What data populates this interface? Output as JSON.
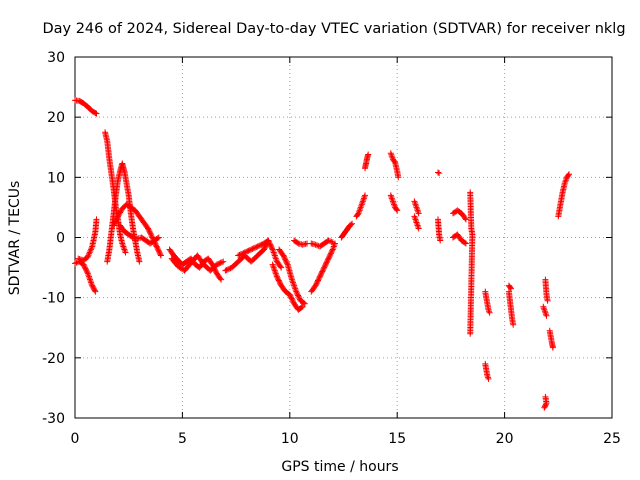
{
  "chart_data": {
    "type": "scatter",
    "title": "Day 246 of 2024, Sidereal Day-to-day VTEC variation (SDTVAR) for receiver nklg",
    "xlabel": "GPS time / hours",
    "ylabel": "SDTVAR / TECUs",
    "xlim": [
      0,
      25
    ],
    "ylim": [
      -30,
      30
    ],
    "xticks": [
      0,
      5,
      10,
      15,
      20,
      25
    ],
    "yticks": [
      -30,
      -20,
      -10,
      0,
      10,
      20,
      30
    ],
    "grid": true,
    "marker": "+",
    "color": "#ff0000",
    "series": [
      {
        "name": "SDTVAR",
        "segments": [
          [
            [
              0.0,
              22.8
            ],
            [
              0.2,
              22.7
            ],
            [
              0.4,
              22.3
            ],
            [
              0.6,
              21.7
            ],
            [
              0.8,
              21.0
            ],
            [
              1.0,
              20.6
            ]
          ],
          [
            [
              0.0,
              -4.3
            ],
            [
              0.2,
              -4.0
            ],
            [
              0.4,
              -4.5
            ],
            [
              0.6,
              -6.0
            ],
            [
              0.8,
              -8.0
            ],
            [
              0.95,
              -9.0
            ]
          ],
          [
            [
              0.15,
              -3.5
            ],
            [
              0.4,
              -3.8
            ],
            [
              0.6,
              -3.2
            ],
            [
              0.8,
              -1.5
            ],
            [
              0.95,
              1.0
            ],
            [
              1.0,
              3.0
            ]
          ],
          [
            [
              1.4,
              17.5
            ],
            [
              1.5,
              16.0
            ],
            [
              1.6,
              13.0
            ],
            [
              1.7,
              10.5
            ],
            [
              1.8,
              8.0
            ],
            [
              1.9,
              5.0
            ],
            [
              2.0,
              3.0
            ],
            [
              2.1,
              0.5
            ],
            [
              2.2,
              -1.0
            ],
            [
              2.35,
              -2.5
            ]
          ],
          [
            [
              1.5,
              -4.0
            ],
            [
              1.6,
              -2.0
            ],
            [
              1.7,
              1.0
            ],
            [
              1.8,
              4.0
            ],
            [
              1.9,
              7.0
            ],
            [
              2.0,
              9.5
            ],
            [
              2.1,
              11.0
            ],
            [
              2.2,
              12.3
            ],
            [
              2.3,
              11.0
            ],
            [
              2.4,
              9.0
            ],
            [
              2.5,
              7.0
            ],
            [
              2.6,
              4.0
            ],
            [
              2.7,
              1.5
            ],
            [
              2.8,
              -0.5
            ],
            [
              2.9,
              -2.5
            ],
            [
              3.0,
              -4.0
            ]
          ],
          [
            [
              1.8,
              2.0
            ],
            [
              2.0,
              3.5
            ],
            [
              2.2,
              4.8
            ],
            [
              2.4,
              5.5
            ],
            [
              2.6,
              5.0
            ],
            [
              2.8,
              4.5
            ],
            [
              3.0,
              3.5
            ],
            [
              3.2,
              2.5
            ],
            [
              3.4,
              1.5
            ],
            [
              3.6,
              0.0
            ],
            [
              3.8,
              -1.5
            ],
            [
              4.0,
              -3.0
            ]
          ],
          [
            [
              2.1,
              2.0
            ],
            [
              2.3,
              1.0
            ],
            [
              2.5,
              0.5
            ],
            [
              2.7,
              0.0
            ],
            [
              2.9,
              -0.2
            ],
            [
              3.1,
              0.0
            ],
            [
              3.3,
              -0.5
            ],
            [
              3.5,
              -1.0
            ],
            [
              3.7,
              -0.5
            ],
            [
              3.9,
              0.0
            ]
          ],
          [
            [
              4.4,
              -2.0
            ],
            [
              4.6,
              -3.0
            ],
            [
              4.8,
              -3.8
            ],
            [
              5.0,
              -4.5
            ],
            [
              5.2,
              -4.0
            ],
            [
              5.4,
              -3.5
            ],
            [
              5.6,
              -4.5
            ],
            [
              5.8,
              -5.0
            ],
            [
              6.0,
              -4.0
            ],
            [
              6.2,
              -3.5
            ],
            [
              6.4,
              -4.5
            ],
            [
              6.6,
              -6.0
            ],
            [
              6.8,
              -7.0
            ]
          ],
          [
            [
              4.5,
              -3.5
            ],
            [
              4.8,
              -4.8
            ],
            [
              5.1,
              -5.5
            ],
            [
              5.4,
              -4.2
            ],
            [
              5.7,
              -3.0
            ],
            [
              6.0,
              -4.5
            ],
            [
              6.3,
              -5.5
            ],
            [
              6.6,
              -4.5
            ],
            [
              6.9,
              -4.0
            ]
          ],
          [
            [
              7.0,
              -5.5
            ],
            [
              7.3,
              -5.0
            ],
            [
              7.6,
              -4.0
            ],
            [
              7.9,
              -3.0
            ],
            [
              8.2,
              -4.0
            ],
            [
              8.5,
              -3.0
            ],
            [
              8.8,
              -2.0
            ],
            [
              9.0,
              -0.5
            ],
            [
              9.2,
              -2.0
            ],
            [
              9.4,
              -4.0
            ],
            [
              9.6,
              -5.0
            ]
          ],
          [
            [
              7.6,
              -3.0
            ],
            [
              7.9,
              -2.5
            ],
            [
              8.2,
              -2.0
            ],
            [
              8.5,
              -1.5
            ],
            [
              8.8,
              -1.0
            ],
            [
              9.0,
              -0.5
            ]
          ],
          [
            [
              9.2,
              -4.5
            ],
            [
              9.4,
              -6.5
            ],
            [
              9.6,
              -8.0
            ],
            [
              9.8,
              -9.0
            ],
            [
              10.0,
              -9.5
            ],
            [
              10.2,
              -11.0
            ],
            [
              10.4,
              -12.0
            ],
            [
              10.6,
              -11.5
            ]
          ],
          [
            [
              9.5,
              -2.0
            ],
            [
              9.7,
              -3.0
            ],
            [
              9.9,
              -4.5
            ],
            [
              10.1,
              -7.0
            ],
            [
              10.3,
              -9.0
            ],
            [
              10.5,
              -10.5
            ],
            [
              10.7,
              -11.0
            ]
          ],
          [
            [
              10.2,
              -0.5
            ],
            [
              10.4,
              -1.0
            ],
            [
              10.6,
              -1.2
            ],
            [
              10.8,
              -1.0
            ]
          ],
          [
            [
              11.0,
              -9.0
            ],
            [
              11.2,
              -8.0
            ],
            [
              11.4,
              -6.5
            ],
            [
              11.6,
              -5.0
            ],
            [
              11.8,
              -3.5
            ],
            [
              12.0,
              -2.0
            ],
            [
              12.1,
              -1.0
            ]
          ],
          [
            [
              11.0,
              -1.0
            ],
            [
              11.2,
              -1.2
            ],
            [
              11.4,
              -1.5
            ],
            [
              11.6,
              -1.0
            ],
            [
              11.8,
              -0.5
            ],
            [
              12.0,
              -0.8
            ]
          ],
          [
            [
              12.4,
              0.0
            ],
            [
              12.5,
              0.5
            ],
            [
              12.6,
              1.0
            ],
            [
              12.7,
              1.5
            ],
            [
              12.8,
              2.0
            ],
            [
              12.9,
              2.3
            ]
          ],
          [
            [
              13.1,
              3.5
            ],
            [
              13.2,
              4.0
            ],
            [
              13.3,
              5.0
            ],
            [
              13.4,
              6.0
            ],
            [
              13.5,
              7.0
            ]
          ],
          [
            [
              13.5,
              11.5
            ],
            [
              13.55,
              12.3
            ],
            [
              13.6,
              13.2
            ],
            [
              13.65,
              13.8
            ]
          ],
          [
            [
              14.7,
              14.0
            ],
            [
              14.8,
              13.0
            ],
            [
              14.9,
              12.5
            ],
            [
              15.0,
              11.0
            ],
            [
              15.05,
              10.0
            ]
          ],
          [
            [
              14.7,
              7.0
            ],
            [
              14.8,
              6.0
            ],
            [
              14.9,
              5.0
            ],
            [
              15.0,
              4.5
            ]
          ],
          [
            [
              15.8,
              6.0
            ],
            [
              15.9,
              5.0
            ],
            [
              16.0,
              4.0
            ]
          ],
          [
            [
              15.8,
              3.5
            ],
            [
              15.9,
              2.5
            ],
            [
              16.0,
              1.5
            ]
          ],
          [
            [
              16.9,
              10.8
            ],
            [
              16.95,
              10.7
            ]
          ],
          [
            [
              16.9,
              3.0
            ],
            [
              16.95,
              0.5
            ],
            [
              17.0,
              -0.5
            ]
          ],
          [
            [
              17.6,
              4.0
            ],
            [
              17.8,
              4.5
            ],
            [
              18.0,
              4.0
            ],
            [
              18.2,
              3.0
            ]
          ],
          [
            [
              17.6,
              0.0
            ],
            [
              17.8,
              0.5
            ],
            [
              18.0,
              -0.5
            ],
            [
              18.2,
              -1.0
            ]
          ],
          [
            [
              18.4,
              7.5
            ],
            [
              18.45,
              1.5
            ],
            [
              18.5,
              0.5
            ],
            [
              18.4,
              -16.0
            ]
          ],
          [
            [
              19.1,
              -9.0
            ],
            [
              19.15,
              -10.0
            ],
            [
              19.2,
              -11.0
            ],
            [
              19.25,
              -12.0
            ],
            [
              19.3,
              -12.5
            ]
          ],
          [
            [
              19.1,
              -21.0
            ],
            [
              19.15,
              -22.0
            ],
            [
              19.2,
              -23.0
            ],
            [
              19.25,
              -23.5
            ]
          ],
          [
            [
              20.2,
              -9.0
            ],
            [
              20.25,
              -10.5
            ],
            [
              20.3,
              -12.0
            ],
            [
              20.35,
              -13.5
            ],
            [
              20.4,
              -14.5
            ]
          ],
          [
            [
              20.2,
              -8.0
            ],
            [
              20.3,
              -8.5
            ]
          ],
          [
            [
              21.8,
              -11.5
            ],
            [
              21.85,
              -12.0
            ],
            [
              21.9,
              -12.5
            ],
            [
              21.95,
              -13.0
            ]
          ],
          [
            [
              21.9,
              -7.0
            ],
            [
              21.95,
              -9.5
            ],
            [
              22.0,
              -10.5
            ]
          ],
          [
            [
              21.9,
              -26.5
            ],
            [
              21.95,
              -27.5
            ],
            [
              21.85,
              -28.3
            ]
          ],
          [
            [
              22.1,
              -15.5
            ],
            [
              22.15,
              -16.5
            ],
            [
              22.2,
              -17.5
            ],
            [
              22.25,
              -18.3
            ]
          ],
          [
            [
              22.5,
              3.5
            ],
            [
              22.6,
              5.5
            ],
            [
              22.7,
              7.5
            ],
            [
              22.8,
              9.0
            ],
            [
              22.9,
              10.0
            ],
            [
              23.0,
              10.5
            ]
          ]
        ]
      }
    ]
  }
}
